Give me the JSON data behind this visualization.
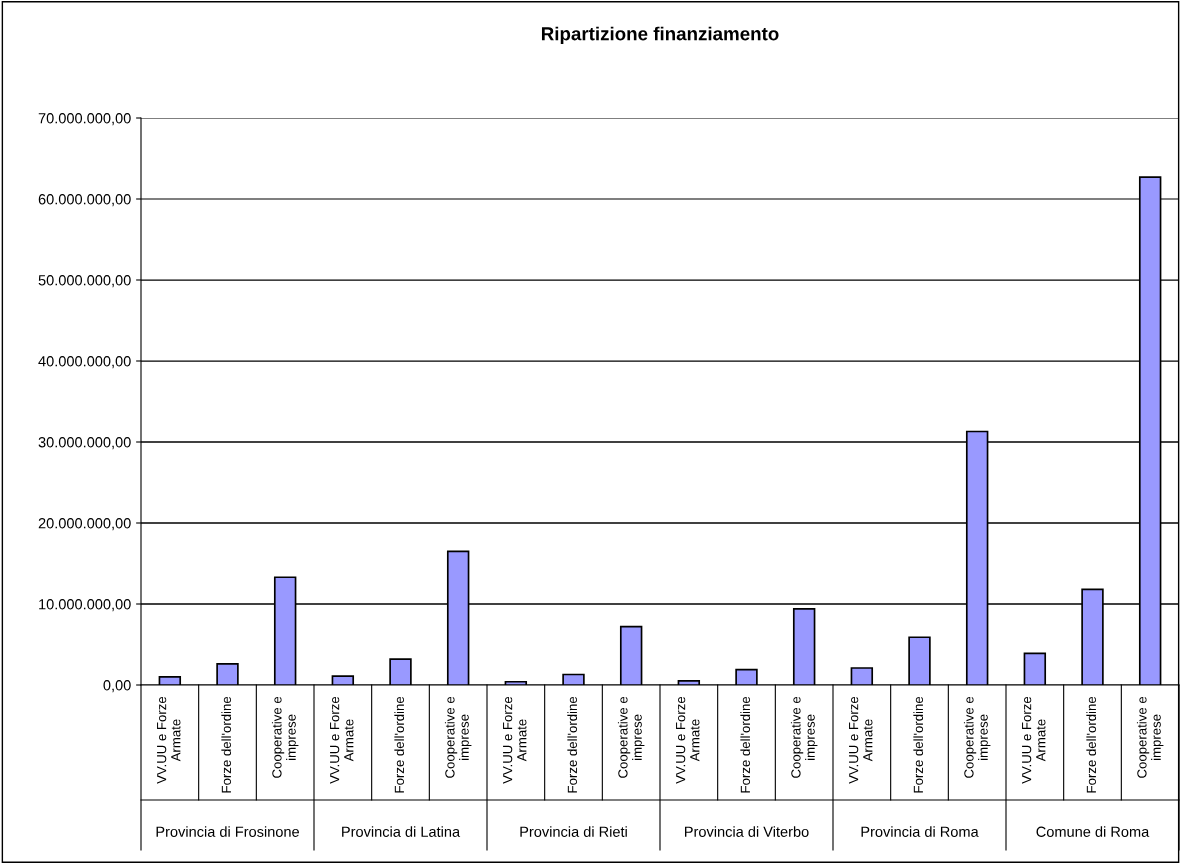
{
  "chart_data": {
    "type": "bar",
    "title": "Ripartizione finanziamento",
    "categories": [
      "VV.UU e Forze\nArmate",
      "Forze dell'ordine",
      "Cooperative e\nimprese",
      "VV.UU e Forze\nArmate",
      "Forze dell'ordine",
      "Cooperative e\nimprese",
      "VV.UU e Forze\nArmate",
      "Forze dell'ordine",
      "Cooperative e\nimprese",
      "VV.UU e Forze\nArmate",
      "Forze dell'ordine",
      "Cooperative e\nimprese",
      "VV.UU e Forze\nArmate",
      "Forze dell'ordine",
      "Cooperative e\nimprese",
      "VV.UU e Forze\nArmate",
      "Forze dell'ordine",
      "Cooperative e\nimprese"
    ],
    "values": [
      1000000,
      2600000,
      13300000,
      1100000,
      3200000,
      16500000,
      400000,
      1300000,
      7200000,
      500000,
      1900000,
      9400000,
      2100000,
      5900000,
      31300000,
      3900000,
      11800000,
      62700000
    ],
    "color": "#9999ff",
    "ylim": [
      0,
      70000000
    ],
    "yticks": [
      {
        "value": 0,
        "label": "0,00"
      },
      {
        "value": 10000000,
        "label": "10.000.000,00"
      },
      {
        "value": 20000000,
        "label": "20.000.000,00"
      },
      {
        "value": 30000000,
        "label": "30.000.000,00"
      },
      {
        "value": 40000000,
        "label": "40.000.000,00"
      },
      {
        "value": 50000000,
        "label": "50.000.000,00"
      },
      {
        "value": 60000000,
        "label": "60.000.000,00"
      },
      {
        "value": 70000000,
        "label": "70.000.000,00"
      }
    ],
    "grid": "y",
    "annotations": [
      "Provincia di Frosinone",
      "Provincia di Latina",
      "Provincia di Rieti",
      "Provincia di Viterbo",
      "Provincia di Roma",
      "Comune di Roma"
    ]
  }
}
